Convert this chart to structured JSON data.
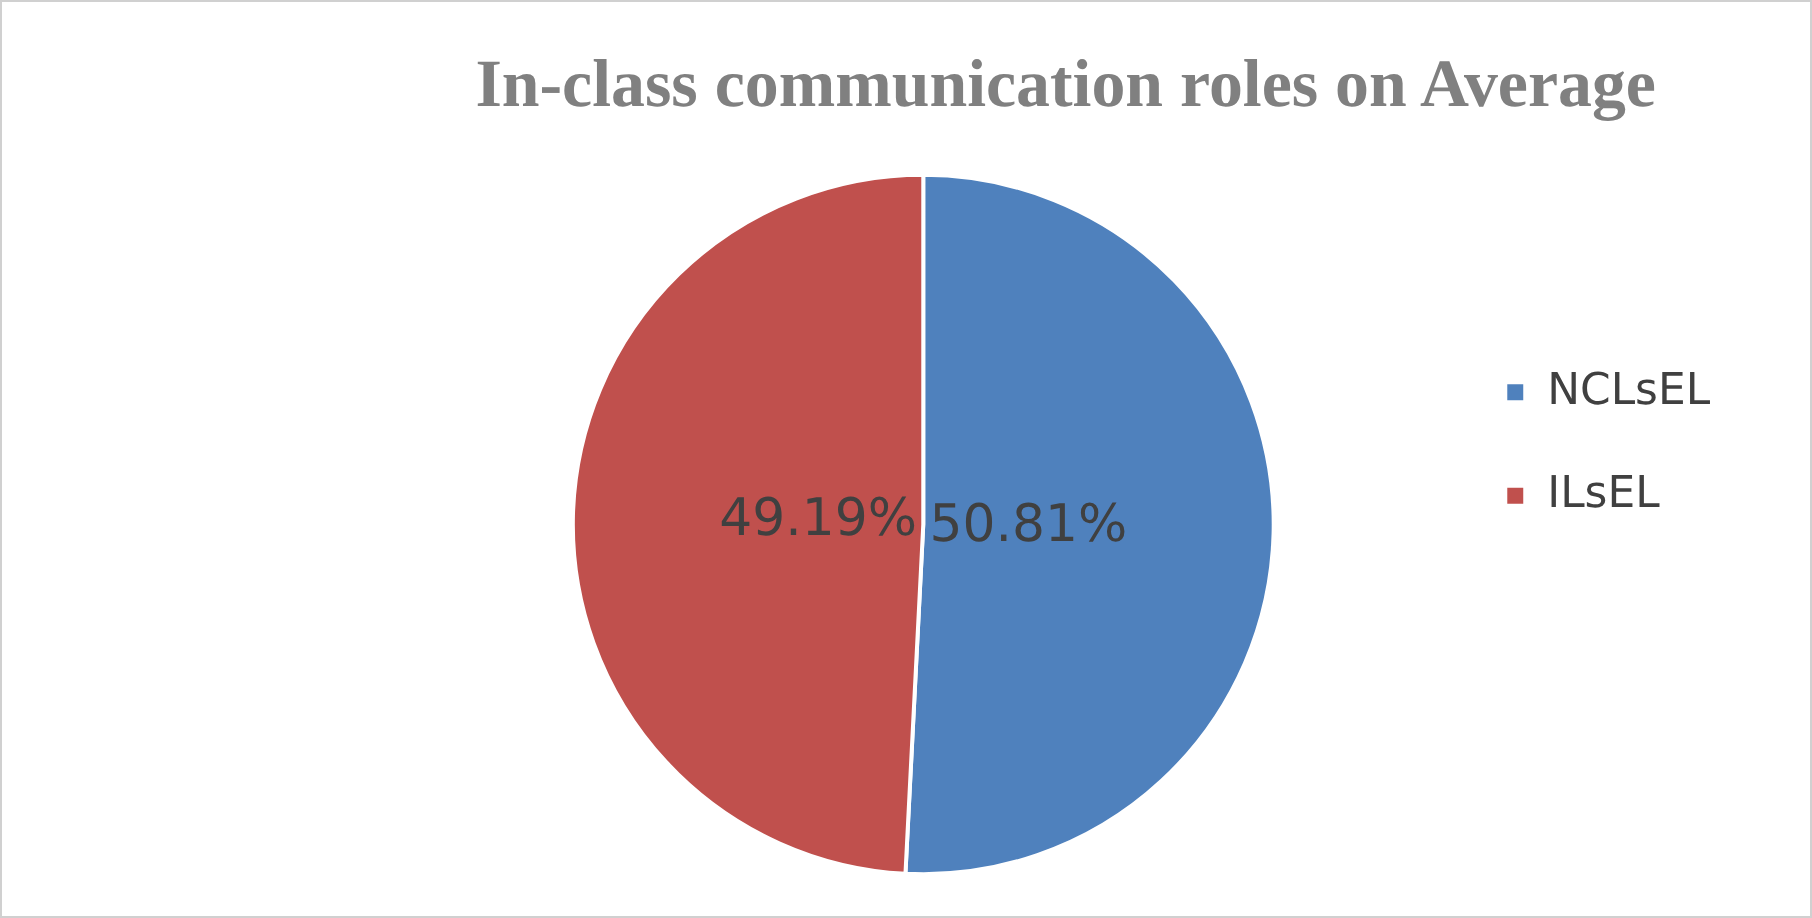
{
  "chart_data": {
    "type": "pie",
    "title": "In-class communication roles on Average",
    "categories": [
      "NCLsEL",
      "ILsEL"
    ],
    "values": [
      50.81,
      49.19
    ],
    "colors": [
      "#4f81bd",
      "#c0504d"
    ],
    "value_labels": [
      "50.81%",
      "49.19%"
    ],
    "legend": "right"
  }
}
